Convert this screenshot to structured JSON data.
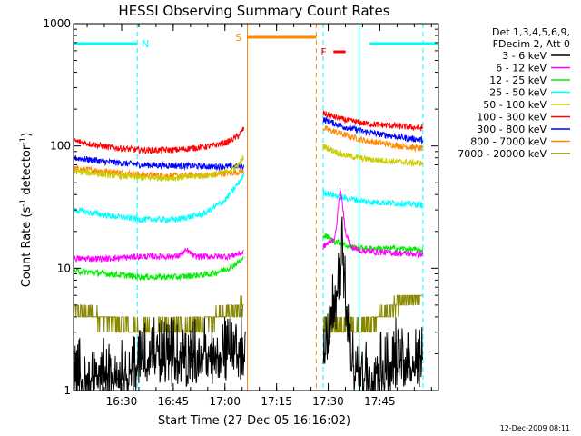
{
  "chart_data": {
    "type": "line",
    "title": "HESSI Observing Summary Count Rates",
    "xlabel": "Start Time (27-Dec-05 16:16:02)",
    "ylabel_main": "Count Rate (s",
    "ylabel_sup1": "-1",
    "ylabel_mid": " detector",
    "ylabel_sup2": "-1",
    "ylabel_end": ")",
    "y_scale": "log",
    "ylim": [
      1,
      1000
    ],
    "xlim_minutes": [
      0,
      106
    ],
    "x_ticks": [
      {
        "label": "16:30",
        "min": 13.97
      },
      {
        "label": "16:45",
        "min": 28.97
      },
      {
        "label": "17:00",
        "min": 43.97
      },
      {
        "label": "17:15",
        "min": 58.97
      },
      {
        "label": "17:30",
        "min": 73.97
      },
      {
        "label": "17:45",
        "min": 88.97
      }
    ],
    "y_ticks": [
      {
        "label": "1",
        "value": 1
      },
      {
        "label": "10",
        "value": 10
      },
      {
        "label": "100",
        "value": 100
      },
      {
        "label": "1000",
        "value": 1000
      }
    ],
    "legend": {
      "header1": "Det 1,3,4,5,6,9,",
      "header2": "FDecim 2, Att 0",
      "entries": [
        {
          "label": "3 - 6 keV",
          "color": "#000000"
        },
        {
          "label": "6 - 12 keV",
          "color": "#ff00ff"
        },
        {
          "label": "12 - 25 keV",
          "color": "#00ee00"
        },
        {
          "label": "25 - 50 keV",
          "color": "#00ffff"
        },
        {
          "label": "50 - 100 keV",
          "color": "#cccc00"
        },
        {
          "label": "100 - 300 keV",
          "color": "#ff0000"
        },
        {
          "label": "300 - 800 keV",
          "color": "#0000ff"
        },
        {
          "label": "800 - 7000 keV",
          "color": "#ff8800"
        },
        {
          "label": "7000 - 20000 keV",
          "color": "#888800"
        }
      ]
    },
    "flags": {
      "night_label": "N",
      "saa_label": "S",
      "flare_label": "F",
      "night_color": "#00ffff",
      "saa_color": "#ff8800",
      "flare_color": "#ff0000",
      "night_bars": [
        [
          0,
          18.5
        ],
        [
          86,
          106
        ]
      ],
      "saa_bar": [
        50.5,
        70.5
      ],
      "flare_bar": [
        75.5,
        79
      ]
    },
    "markers": [
      {
        "kind": "night_dashed",
        "x": 18.5,
        "color": "#00ffff"
      },
      {
        "kind": "saa_solid",
        "x": 50.5,
        "color": "#ff8800"
      },
      {
        "kind": "saa_dashed",
        "x": 70.5,
        "color": "#ff8800"
      },
      {
        "kind": "night_dashed",
        "x": 72.5,
        "color": "#00ffff"
      },
      {
        "kind": "night_solid",
        "x": 83,
        "color": "#00ffff"
      },
      {
        "kind": "night_dashed",
        "x": 101.5,
        "color": "#00ffff"
      }
    ],
    "gap": [
      50.5,
      72.5
    ],
    "series": [
      {
        "name": "3 - 6 keV",
        "color": "#000000",
        "segments": [
          {
            "x": [
              0,
              18,
              19,
              30,
              40,
              50
            ],
            "y": [
              1,
              1.2,
              1.6,
              1.5,
              1.6,
              1.7
            ]
          },
          {
            "x": [
              72.5,
              76,
              78,
              79.5,
              80.5,
              83,
              90,
              95,
              101.5
            ],
            "y": [
              2,
              4,
              10,
              3,
              1.3,
              1.2,
              1.3,
              1.5,
              1.5
            ]
          }
        ]
      },
      {
        "name": "6 - 12 keV",
        "color": "#ff00ff",
        "segments": [
          {
            "x": [
              0,
              10,
              20,
              30,
              33,
              35,
              40,
              45,
              49.5
            ],
            "y": [
              12,
              12,
              12.5,
              12.5,
              14,
              12.5,
              12.5,
              12.5,
              13.5
            ]
          },
          {
            "x": [
              72.5,
              74,
              76,
              77.5,
              79,
              80.5,
              83,
              90,
              101.5
            ],
            "y": [
              15,
              16,
              18,
              45,
              20,
              15,
              14,
              13.5,
              13
            ]
          }
        ]
      },
      {
        "name": "12 - 25 keV",
        "color": "#00ee00",
        "segments": [
          {
            "x": [
              0,
              10,
              20,
              30,
              40,
              45,
              49.5
            ],
            "y": [
              9.5,
              9,
              8.5,
              8.5,
              9,
              10,
              12
            ]
          },
          {
            "x": [
              72.5,
              75,
              78,
              80,
              85,
              95,
              101.5
            ],
            "y": [
              19,
              17,
              16,
              15,
              14.5,
              14.5,
              14
            ]
          }
        ]
      },
      {
        "name": "25 - 50 keV",
        "color": "#00ffff",
        "segments": [
          {
            "x": [
              0,
              10,
              20,
              30,
              38,
              44,
              48,
              49.5
            ],
            "y": [
              30,
              27,
              25,
              25,
              28,
              36,
              50,
              58
            ]
          },
          {
            "x": [
              72.5,
              78,
              85,
              95,
              101.5
            ],
            "y": [
              42,
              38,
              35,
              34,
              33
            ]
          }
        ]
      },
      {
        "name": "50 - 100 keV",
        "color": "#cccc00",
        "segments": [
          {
            "x": [
              0,
              10,
              20,
              30,
              40,
              45,
              48,
              49.5
            ],
            "y": [
              62,
              58,
              55,
              55,
              58,
              62,
              70,
              82
            ]
          },
          {
            "x": [
              72.5,
              78,
              85,
              95,
              101.5
            ],
            "y": [
              100,
              85,
              78,
              74,
              72
            ]
          }
        ]
      },
      {
        "name": "100 - 300 keV",
        "color": "#ff0000",
        "segments": [
          {
            "x": [
              0,
              10,
              20,
              30,
              40,
              45,
              48,
              49.5
            ],
            "y": [
              110,
              98,
              92,
              93,
              100,
              108,
              122,
              140
            ]
          },
          {
            "x": [
              72.5,
              78,
              85,
              95,
              101.5
            ],
            "y": [
              185,
              165,
              152,
              145,
              140
            ]
          }
        ]
      },
      {
        "name": "300 - 800 keV",
        "color": "#0000ff",
        "segments": [
          {
            "x": [
              0,
              10,
              20,
              30,
              40,
              49.5
            ],
            "y": [
              80,
              74,
              70,
              69,
              68,
              68
            ]
          },
          {
            "x": [
              72.5,
              78,
              85,
              95,
              101.5
            ],
            "y": [
              165,
              145,
              130,
              118,
              112
            ]
          }
        ]
      },
      {
        "name": "800 - 7000 keV",
        "color": "#ff8800",
        "segments": [
          {
            "x": [
              0,
              10,
              20,
              30,
              40,
              45,
              49.5
            ],
            "y": [
              65,
              62,
              58,
              57,
              58,
              60,
              62
            ]
          },
          {
            "x": [
              72.5,
              78,
              85,
              95,
              101.5
            ],
            "y": [
              140,
              125,
              110,
              100,
              95
            ]
          }
        ]
      },
      {
        "name": "7000 - 20000 keV",
        "color": "#888800",
        "segments": [
          {
            "x": [
              0,
              8,
              18,
              28,
              38,
              44,
              49.5
            ],
            "y": [
              4.5,
              4,
              3.2,
              3.2,
              3.5,
              4.5,
              5
            ]
          },
          {
            "x": [
              72.5,
              78,
              84,
              90,
              95,
              101.5
            ],
            "y": [
              3.5,
              3.3,
              3.4,
              4.2,
              5.2,
              6
            ]
          }
        ]
      }
    ]
  },
  "footer": {
    "timestamp": "12-Dec-2009 08:11"
  }
}
